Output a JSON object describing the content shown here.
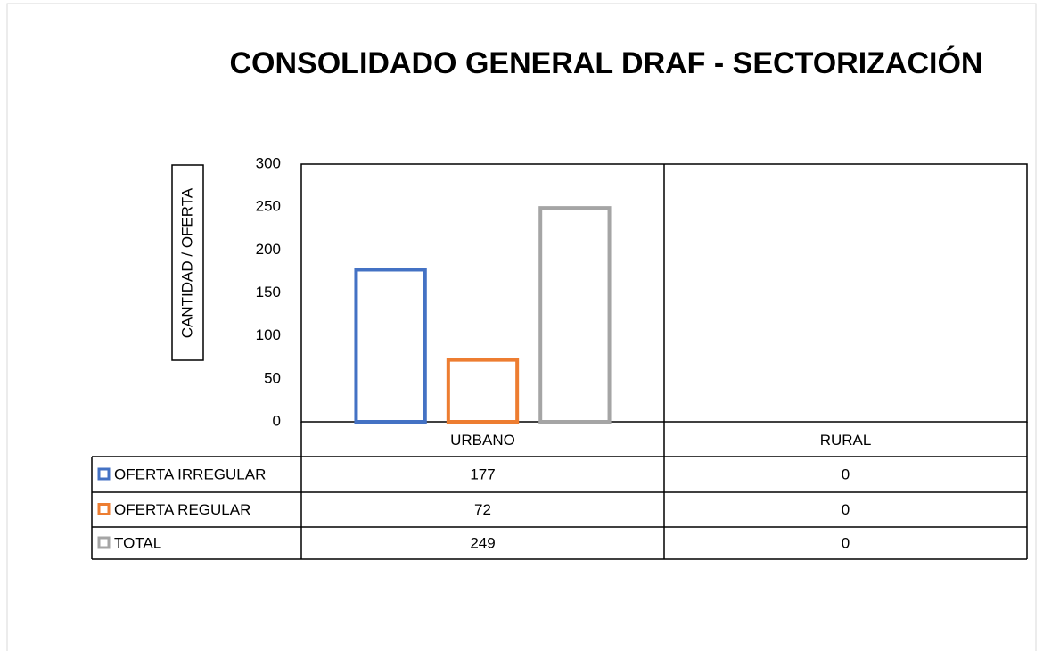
{
  "chart_data": {
    "type": "bar",
    "title": "CONSOLIDADO GENERAL DRAF - SECTORIZACIÓN",
    "y_label": "CANTIDAD / OFERTA",
    "categories": [
      "URBANO",
      "RURAL"
    ],
    "series": [
      {
        "name": "OFERTA IRREGULAR",
        "color": "#4472c4",
        "values": [
          177,
          0
        ]
      },
      {
        "name": "OFERTA REGULAR",
        "color": "#ed7d31",
        "values": [
          72,
          0
        ]
      },
      {
        "name": "TOTAL",
        "color": "#a5a5a5",
        "values": [
          249,
          0
        ]
      }
    ],
    "ylim": [
      0,
      300
    ],
    "yticks": [
      0,
      50,
      100,
      150,
      200,
      250,
      300
    ],
    "grid": false,
    "data_table": true
  }
}
